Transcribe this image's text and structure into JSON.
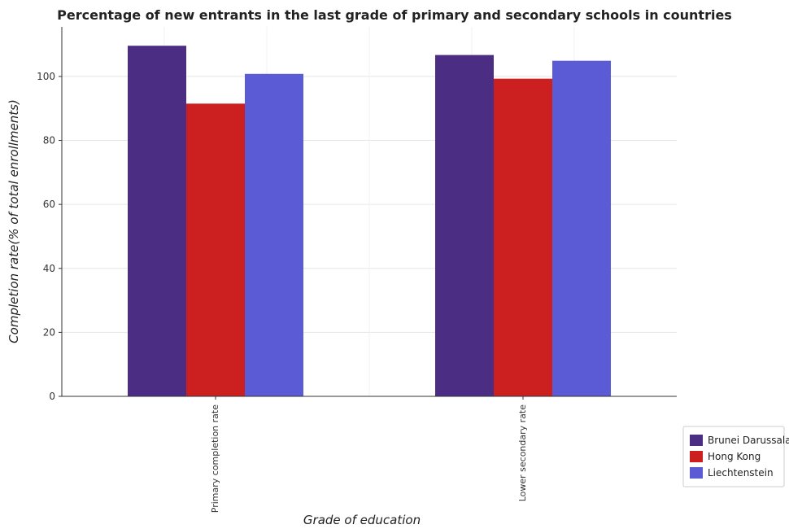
{
  "chart_data": {
    "type": "bar",
    "title": "Percentage of new entrants in the last grade of primary  and secondary schools in countries",
    "xlabel": "Grade of education",
    "ylabel": "Completion rate(% of total enrollments)",
    "categories": [
      "Primary completion rate",
      "Lower secondary rate"
    ],
    "series": [
      {
        "name": "Brunei Darussalam",
        "color": "#4b2e83",
        "values": [
          109.6,
          106.7
        ]
      },
      {
        "name": "Hong Kong",
        "color": "#cc1f1f",
        "values": [
          91.5,
          99.3
        ]
      },
      {
        "name": "Liechtenstein",
        "color": "#5b5bd6",
        "values": [
          100.8,
          104.9
        ]
      }
    ],
    "ylim": [
      0,
      115.5
    ],
    "yticks": [
      0,
      20,
      40,
      60,
      80,
      100
    ],
    "grid": true,
    "legend_position": "bottom-right"
  }
}
